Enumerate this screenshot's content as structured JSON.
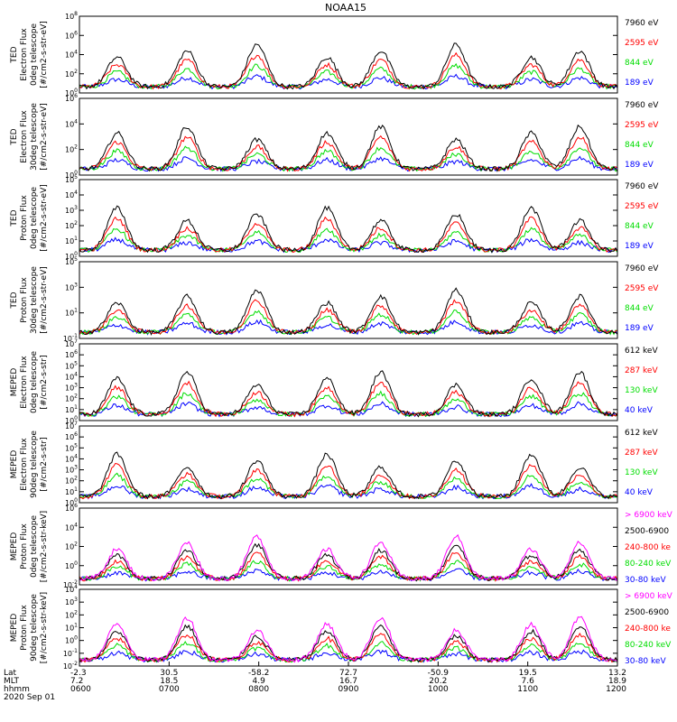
{
  "chart_data": {
    "type": "line",
    "title": "NOAA15",
    "panels": [
      {
        "ylabel": [
          "TED",
          "Electron Flux",
          "0deg telescope",
          "[#/cm2-s-str-eV]"
        ],
        "ytick_labels": [
          "10^0",
          "10^2",
          "10^4",
          "10^6",
          "10^8"
        ],
        "ylim": [
          1,
          100000000
        ],
        "yscale": "log",
        "series": [
          {
            "name": "7960 eV",
            "color": "#000000"
          },
          {
            "name": "2595 eV",
            "color": "#ff0000"
          },
          {
            "name": "844 eV",
            "color": "#00dd00"
          },
          {
            "name": "189 eV",
            "color": "#0000ff"
          }
        ]
      },
      {
        "ylabel": [
          "TED",
          "Electron Flux",
          "30deg telescope",
          "[#/cm2-s-str-eV]"
        ],
        "ytick_labels": [
          "10^0",
          "10^2",
          "10^4",
          "10^6"
        ],
        "ylim": [
          1,
          1000000
        ],
        "yscale": "log",
        "series": [
          {
            "name": "7960 eV",
            "color": "#000000"
          },
          {
            "name": "2595 eV",
            "color": "#ff0000"
          },
          {
            "name": "844 eV",
            "color": "#00dd00"
          },
          {
            "name": "189 eV",
            "color": "#0000ff"
          }
        ]
      },
      {
        "ylabel": [
          "TED",
          "Proton Flux",
          "0deg telescope",
          "[#/cm2-s-str-eV]"
        ],
        "ytick_labels": [
          "10^0",
          "10^1",
          "10^2",
          "10^3",
          "10^4",
          "10^5"
        ],
        "ylim": [
          1,
          100000
        ],
        "yscale": "log",
        "series": [
          {
            "name": "7960 eV",
            "color": "#000000"
          },
          {
            "name": "2595 eV",
            "color": "#ff0000"
          },
          {
            "name": "844 eV",
            "color": "#00dd00"
          },
          {
            "name": "189 eV",
            "color": "#0000ff"
          }
        ]
      },
      {
        "ylabel": [
          "TED",
          "Proton Flux",
          "30deg telescope",
          "[#/cm2-s-str-eV]"
        ],
        "ytick_labels": [
          "10^-1",
          "10^1",
          "10^3",
          "10^5"
        ],
        "ylim": [
          0.1,
          100000
        ],
        "yscale": "log",
        "series": [
          {
            "name": "7960 eV",
            "color": "#000000"
          },
          {
            "name": "2595 eV",
            "color": "#ff0000"
          },
          {
            "name": "844 eV",
            "color": "#00dd00"
          },
          {
            "name": "189 eV",
            "color": "#0000ff"
          }
        ]
      },
      {
        "ylabel": [
          "MEPED",
          "Electron Flux",
          "0deg telescope",
          "[#/cm2-s-str]"
        ],
        "ytick_labels": [
          "10^0",
          "10^1",
          "10^2",
          "10^3",
          "10^4",
          "10^5",
          "10^6",
          "10^7"
        ],
        "ylim": [
          1,
          10000000
        ],
        "yscale": "log",
        "series": [
          {
            "name": "612 keV",
            "color": "#000000"
          },
          {
            "name": "287 keV",
            "color": "#ff0000"
          },
          {
            "name": "130 keV",
            "color": "#00dd00"
          },
          {
            "name": "40 keV",
            "color": "#0000ff"
          }
        ]
      },
      {
        "ylabel": [
          "MEPED",
          "Electron Flux",
          "90deg telescope",
          "[#/cm2-s-str]"
        ],
        "ytick_labels": [
          "10^0",
          "10^1",
          "10^2",
          "10^3",
          "10^4",
          "10^5",
          "10^6",
          "10^7"
        ],
        "ylim": [
          1,
          10000000
        ],
        "yscale": "log",
        "series": [
          {
            "name": "612 keV",
            "color": "#000000"
          },
          {
            "name": "287 keV",
            "color": "#ff0000"
          },
          {
            "name": "130 keV",
            "color": "#00dd00"
          },
          {
            "name": "40 keV",
            "color": "#0000ff"
          }
        ]
      },
      {
        "ylabel": [
          "MEPED",
          "Proton Flux",
          "0deg telescope",
          "[#/cm2-s-str-keV]"
        ],
        "ytick_labels": [
          "10^-2",
          "10^0",
          "10^2",
          "10^4",
          "10^6"
        ],
        "ylim": [
          0.01,
          1000000
        ],
        "yscale": "log",
        "series": [
          {
            "name": "> 6900 keV",
            "color": "#ff00ff"
          },
          {
            "name": "2500-6900",
            "color": "#000000"
          },
          {
            "name": "240-800 ke",
            "color": "#ff0000"
          },
          {
            "name": "80-240 keV",
            "color": "#00dd00"
          },
          {
            "name": "30-80 keV",
            "color": "#0000ff"
          }
        ]
      },
      {
        "ylabel": [
          "MEPED",
          "Proton Flux",
          "90deg telescope",
          "[#/cm2-s-str-keV]"
        ],
        "ytick_labels": [
          "10^-2",
          "10^-1",
          "10^0",
          "10^1",
          "10^2",
          "10^3",
          "10^4"
        ],
        "ylim": [
          0.01,
          10000
        ],
        "yscale": "log",
        "series": [
          {
            "name": "> 6900 keV",
            "color": "#ff00ff"
          },
          {
            "name": "2500-6900",
            "color": "#000000"
          },
          {
            "name": "240-800 ke",
            "color": "#ff0000"
          },
          {
            "name": "80-240 keV",
            "color": "#00dd00"
          },
          {
            "name": "30-80 keV",
            "color": "#0000ff"
          }
        ]
      }
    ],
    "x_axis": {
      "row_labels": [
        "Lat",
        "MLT",
        "hhmm",
        "2020 Sep 01"
      ],
      "ticks": [
        {
          "lat": "-2.3",
          "mlt": "7.2",
          "hhmm": "0600"
        },
        {
          "lat": "30.5",
          "mlt": "18.5",
          "hhmm": "0700"
        },
        {
          "lat": "-58.2",
          "mlt": "4.9",
          "hhmm": "0800"
        },
        {
          "lat": "72.7",
          "mlt": "16.7",
          "hhmm": "0900"
        },
        {
          "lat": "-50.9",
          "mlt": "20.2",
          "hhmm": "1000"
        },
        {
          "lat": "19.5",
          "mlt": "7.6",
          "hhmm": "1100"
        },
        {
          "lat": "13.2",
          "mlt": "18.9",
          "hhmm": "1200"
        }
      ],
      "xlim": [
        "0600",
        "1200"
      ]
    },
    "grid": false,
    "legend_placement": "right of each panel"
  }
}
